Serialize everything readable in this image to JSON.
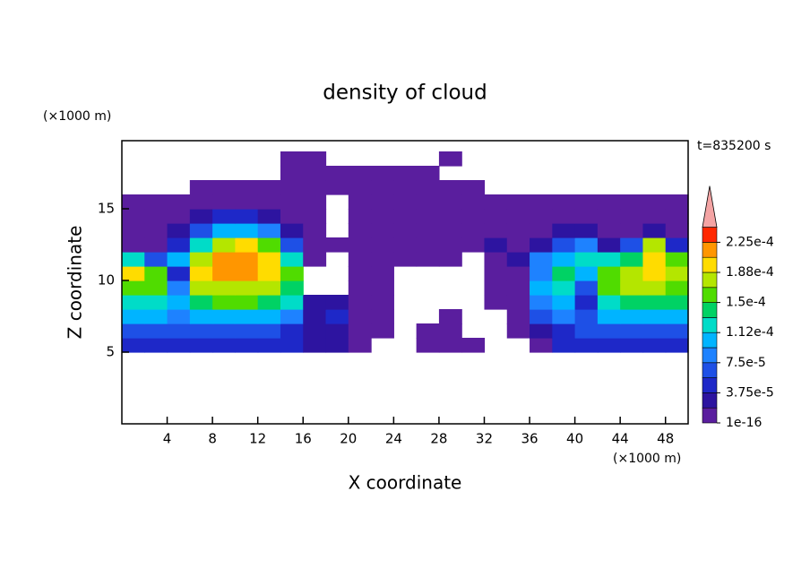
{
  "chart_data": {
    "type": "contour",
    "title": "density of cloud",
    "x_label": "X coordinate",
    "y_label": "Z coordinate",
    "x_unit": "(×1000 m)",
    "y_unit": "(×1000 m)",
    "annotation": "t=835200 s",
    "xlim": [
      0,
      50
    ],
    "ylim": [
      0,
      19.75
    ],
    "xticks": [
      4,
      8,
      12,
      16,
      20,
      24,
      28,
      32,
      36,
      40,
      44,
      48
    ],
    "yticks": [
      5,
      10,
      15
    ],
    "x_edges": [
      0,
      2,
      4,
      6,
      8,
      10,
      12,
      14,
      16,
      18,
      20,
      22,
      24,
      26,
      28,
      30,
      32,
      34,
      36,
      38,
      40,
      42,
      44,
      46,
      48,
      50
    ],
    "z_edges": [
      5,
      6,
      7,
      8,
      9,
      10,
      11,
      12,
      13,
      14,
      15,
      16,
      17,
      18,
      19
    ],
    "z": [
      [
        4e-05,
        4e-05,
        4e-05,
        4e-05,
        4e-05,
        4e-05,
        4e-05,
        4e-05,
        2e-05,
        2e-05,
        1e-05,
        null,
        null,
        1e-05,
        1e-05,
        1e-05,
        null,
        null,
        1e-05,
        4e-05,
        4e-05,
        4e-05,
        4e-05,
        4e-05,
        4e-05
      ],
      [
        7e-05,
        7e-05,
        6e-05,
        7e-05,
        7e-05,
        7e-05,
        7e-05,
        4e-05,
        3e-05,
        2e-05,
        1e-05,
        1e-05,
        null,
        1e-05,
        1e-05,
        null,
        null,
        1e-05,
        3e-05,
        5e-05,
        6e-05,
        7e-05,
        7e-05,
        7e-05,
        7e-05
      ],
      [
        0.0001,
        0.0001,
        8e-05,
        0.00011,
        0.00011,
        0.00011,
        0.00011,
        9e-05,
        2e-05,
        5e-05,
        1e-05,
        1e-05,
        null,
        null,
        1e-05,
        null,
        null,
        1e-05,
        6e-05,
        9e-05,
        6e-05,
        0.00011,
        0.00011,
        0.00011,
        0.00011
      ],
      [
        0.00013,
        0.00013,
        0.0001,
        0.00014,
        0.00015,
        0.00015,
        0.00014,
        0.00012,
        2e-05,
        3e-05,
        1e-05,
        1e-05,
        null,
        null,
        null,
        null,
        1e-05,
        1e-05,
        8e-05,
        0.00011,
        5e-05,
        0.00013,
        0.00014,
        0.00014,
        0.00014
      ],
      [
        0.00016,
        0.00016,
        8e-05,
        0.00017,
        0.00018,
        0.00018,
        0.00017,
        0.00014,
        null,
        null,
        1e-05,
        1e-05,
        null,
        null,
        null,
        null,
        1e-05,
        1e-05,
        0.0001,
        0.00013,
        6e-05,
        0.00015,
        0.00017,
        0.00017,
        0.00016
      ],
      [
        0.00019,
        0.00015,
        5e-05,
        0.0002,
        0.00021,
        0.00021,
        0.0002,
        0.00015,
        null,
        null,
        1e-05,
        1e-05,
        null,
        null,
        null,
        null,
        1e-05,
        1e-05,
        9e-05,
        0.00014,
        0.0001,
        0.00015,
        0.00018,
        0.00019,
        0.00018
      ],
      [
        0.00012,
        6e-05,
        0.0001,
        0.00018,
        0.00021,
        0.00022,
        0.0002,
        0.00012,
        1e-05,
        null,
        1e-05,
        1e-05,
        1e-05,
        1e-05,
        1e-05,
        null,
        1e-05,
        3e-05,
        8e-05,
        0.0001,
        0.00012,
        0.00013,
        0.00014,
        0.0002,
        0.00016
      ],
      [
        1e-05,
        1e-05,
        4e-05,
        0.00012,
        0.00017,
        0.00019,
        0.00016,
        7e-05,
        1e-05,
        1e-05,
        1e-05,
        1e-05,
        1e-05,
        1e-05,
        1e-05,
        1e-05,
        2e-05,
        1e-05,
        2e-05,
        7e-05,
        8e-05,
        3e-05,
        6e-05,
        0.00018,
        5e-05
      ],
      [
        1e-05,
        1e-05,
        2e-05,
        7e-05,
        0.0001,
        0.00011,
        9e-05,
        3e-05,
        1e-05,
        null,
        1e-05,
        1e-05,
        1e-05,
        1e-05,
        1e-05,
        1e-05,
        1e-05,
        1e-05,
        1e-05,
        2e-05,
        2e-05,
        1e-05,
        1e-05,
        3e-05,
        1e-05
      ],
      [
        1e-05,
        1e-05,
        1e-05,
        2e-05,
        5e-05,
        5e-05,
        3e-05,
        1e-05,
        1e-05,
        null,
        1e-05,
        1e-05,
        1e-05,
        1e-05,
        1e-05,
        1e-05,
        1e-05,
        1e-05,
        1e-05,
        1e-05,
        1e-05,
        1e-05,
        1e-05,
        1e-05,
        1e-05
      ],
      [
        1e-05,
        1e-05,
        1e-05,
        1e-05,
        1e-05,
        1e-05,
        1e-05,
        1e-05,
        1e-05,
        null,
        1e-05,
        1e-05,
        1e-05,
        1e-05,
        1e-05,
        1e-05,
        1e-05,
        1e-05,
        1e-05,
        1e-05,
        1e-05,
        1e-05,
        1e-05,
        1e-05,
        1e-05
      ],
      [
        null,
        null,
        null,
        1e-05,
        1e-05,
        1e-05,
        1e-05,
        1e-05,
        1e-05,
        1e-05,
        1e-05,
        1e-05,
        1e-05,
        1e-05,
        1e-05,
        1e-05,
        null,
        null,
        null,
        null,
        null,
        null,
        null,
        null,
        null
      ],
      [
        null,
        null,
        null,
        null,
        null,
        null,
        null,
        1e-05,
        1e-05,
        1e-05,
        1e-05,
        1e-05,
        1e-05,
        1e-05,
        null,
        null,
        null,
        null,
        null,
        null,
        null,
        null,
        null,
        null,
        null
      ],
      [
        null,
        null,
        null,
        null,
        null,
        null,
        null,
        1e-05,
        1e-05,
        null,
        null,
        null,
        null,
        null,
        1e-05,
        null,
        null,
        null,
        null,
        null,
        null,
        null,
        null,
        null,
        null
      ]
    ],
    "colorbar": {
      "levels": [
        1e-16,
        1.875e-05,
        3.75e-05,
        5.625e-05,
        7.5e-05,
        9.375e-05,
        0.0001125,
        0.00013125,
        0.00015,
        0.00016875,
        0.0001875,
        0.00020625,
        0.000225,
        0.00024375
      ],
      "ticks": [
        {
          "value": 1e-16,
          "label": "1e-16"
        },
        {
          "value": 3.75e-05,
          "label": "3.75e-5"
        },
        {
          "value": 7.5e-05,
          "label": "7.5e-5"
        },
        {
          "value": 0.0001125,
          "label": "1.12e-4"
        },
        {
          "value": 0.00015,
          "label": "1.5e-4"
        },
        {
          "value": 0.0001875,
          "label": "1.88e-4"
        },
        {
          "value": 0.000225,
          "label": "2.25e-4"
        }
      ],
      "colors": [
        "#5a1e9e",
        "#2d14a0",
        "#1e28c8",
        "#1e50e6",
        "#1e82ff",
        "#00b4ff",
        "#00dcc8",
        "#00d264",
        "#50dc00",
        "#b4e600",
        "#ffdc00",
        "#ff9600",
        "#ff2800"
      ],
      "over_color": "#f4a4a4"
    }
  }
}
